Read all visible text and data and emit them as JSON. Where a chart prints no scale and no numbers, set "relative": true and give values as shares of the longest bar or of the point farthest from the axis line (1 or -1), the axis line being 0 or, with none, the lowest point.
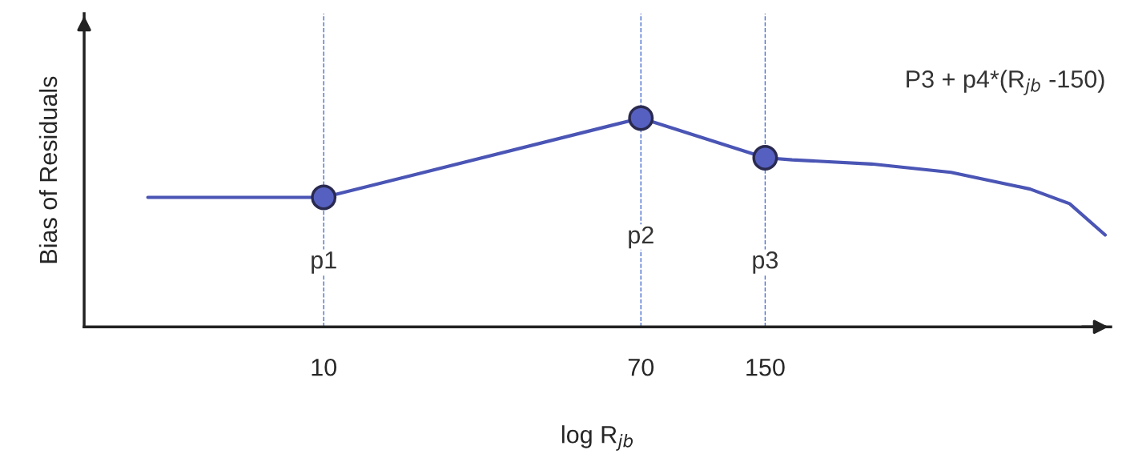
{
  "chart_data": {
    "type": "line",
    "relative": true,
    "log": "x",
    "grid": false,
    "tick_labels": "x",
    "xlabel": "log R$_{jb}$",
    "ylabel": "Bias of Residuals",
    "xlim": [
      2.3,
      1250
    ],
    "xticks": [
      10,
      70,
      150
    ],
    "series": [
      {
        "color": "#4a55b5",
        "marker": "none",
        "x": [
          3.4,
          10,
          70,
          150,
          177,
          288,
          469,
          762,
          971,
          1208
        ],
        "values": [
          0.62,
          0.62,
          1,
          0.81,
          0.8,
          0.78,
          0.74,
          0.66,
          0.59,
          0.44
        ]
      },
      {
        "type": "scatter",
        "color": "#5560c0",
        "marker": "circle",
        "x": [
          10,
          70,
          150
        ],
        "values": [
          0.62,
          1,
          0.81
        ]
      }
    ],
    "ref_lines": [
      {
        "axis": "x",
        "value": 10,
        "color": "#4a6fd0",
        "line_style": "dashed"
      },
      {
        "axis": "x",
        "value": 70,
        "color": "#4a6fd0",
        "line_style": "dashed"
      },
      {
        "axis": "x",
        "value": 150,
        "color": "#4a6fd0",
        "line_style": "dashed"
      }
    ],
    "annotations": [
      {
        "text": "p1",
        "x": 10,
        "y": 0.31
      },
      {
        "text": "p2",
        "x": 70,
        "y": 0.43
      },
      {
        "text": "p3",
        "x": 150,
        "y": 0.31
      },
      "P3 + p4*(R$_{jb}$ -150)"
    ]
  }
}
